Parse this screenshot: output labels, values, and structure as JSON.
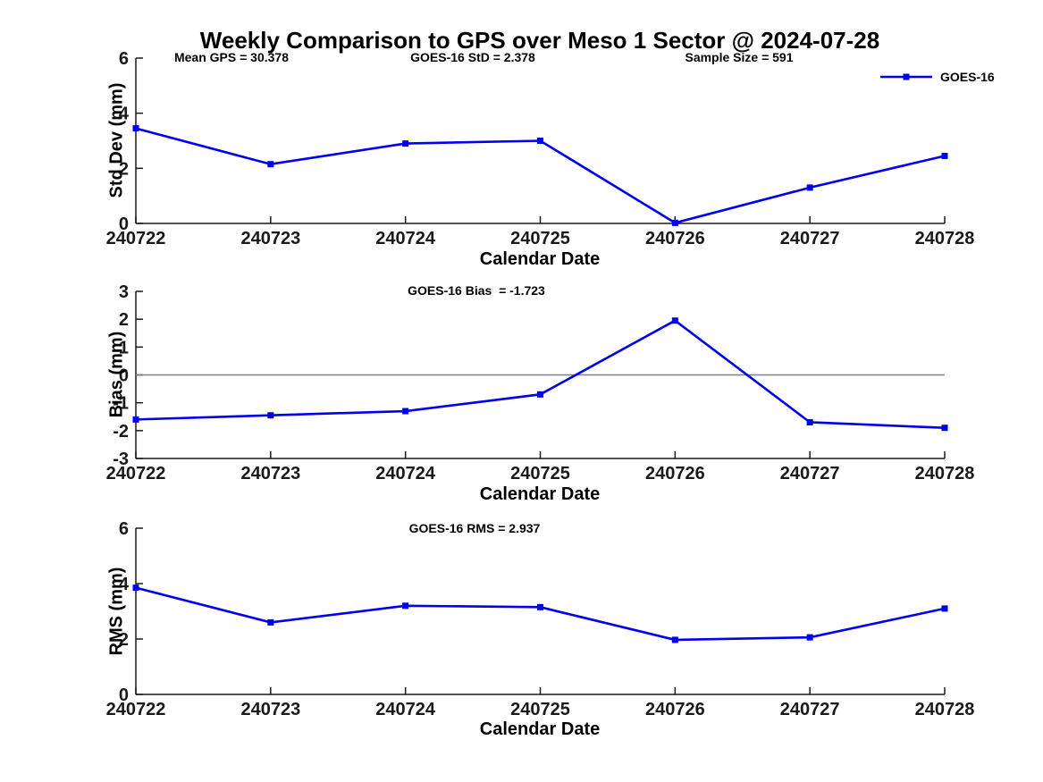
{
  "title": "Weekly Comparison to GPS over Meso 1 Sector @ 2024-07-28",
  "legend": {
    "label": "GOES-16"
  },
  "colors": {
    "line": "#0000EE",
    "zero_line": "#808080",
    "axis": "#1a1a1a",
    "text": "#000000",
    "background": "#ffffff"
  },
  "chart_data": [
    {
      "type": "line",
      "id": "std-dev",
      "annotations": [
        "Mean GPS = 30.378",
        "GOES-16 StD = 2.378",
        "Sample Size = 591"
      ],
      "xlabel": "Calendar Date",
      "ylabel": "Std Dev (mm)",
      "ylim": [
        0,
        6
      ],
      "yticks": [
        0,
        2,
        4,
        6
      ],
      "categories": [
        "240722",
        "240723",
        "240724",
        "240725",
        "240726",
        "240727",
        "240728"
      ],
      "series": [
        {
          "name": "GOES-16",
          "marker": "square",
          "values": [
            3.45,
            2.15,
            2.9,
            3.0,
            0.02,
            1.3,
            2.45
          ]
        }
      ],
      "zero_line": false,
      "grid": false,
      "legend_position": "top-right"
    },
    {
      "type": "line",
      "id": "bias",
      "annotations": [
        "GOES-16 Bias  = -1.723"
      ],
      "xlabel": "Calendar Date",
      "ylabel": "Bias (mm)",
      "ylim": [
        -3,
        3
      ],
      "yticks": [
        -3,
        -2,
        -1,
        0,
        1,
        2,
        3
      ],
      "categories": [
        "240722",
        "240723",
        "240724",
        "240725",
        "240726",
        "240727",
        "240728"
      ],
      "series": [
        {
          "name": "GOES-16",
          "marker": "square",
          "values": [
            -1.6,
            -1.45,
            -1.3,
            -0.7,
            1.95,
            -1.7,
            -1.9
          ]
        }
      ],
      "zero_line": true,
      "grid": false
    },
    {
      "type": "line",
      "id": "rms",
      "annotations": [
        "GOES-16 RMS = 2.937"
      ],
      "xlabel": "Calendar Date",
      "ylabel": "RMS (mm)",
      "ylim": [
        0,
        6
      ],
      "yticks": [
        0,
        2,
        4,
        6
      ],
      "categories": [
        "240722",
        "240723",
        "240724",
        "240725",
        "240726",
        "240727",
        "240728"
      ],
      "series": [
        {
          "name": "GOES-16",
          "marker": "square",
          "values": [
            3.85,
            2.6,
            3.2,
            3.15,
            1.97,
            2.06,
            3.1
          ]
        }
      ],
      "zero_line": false,
      "grid": false
    }
  ]
}
